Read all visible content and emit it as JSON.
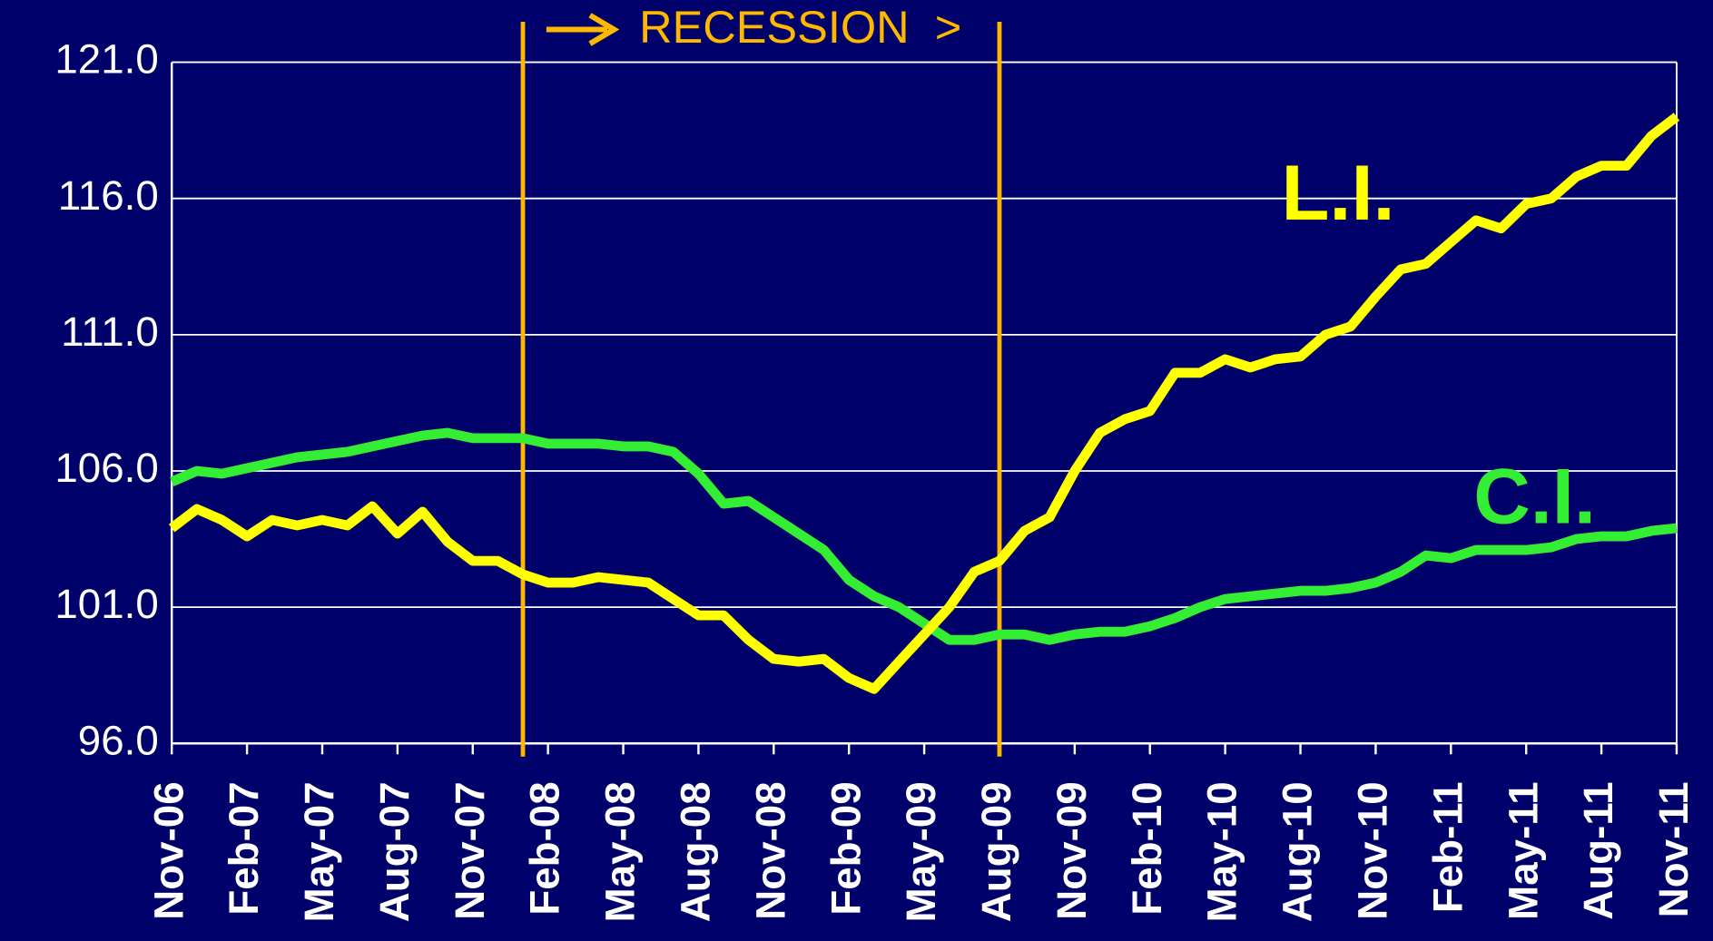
{
  "chart_data": {
    "type": "line",
    "annotation": "RECESSION  >",
    "recession_lines": [
      14,
      33
    ],
    "categories": [
      "Nov-06",
      null,
      null,
      "Feb-07",
      null,
      null,
      "May-07",
      null,
      null,
      "Aug-07",
      null,
      null,
      "Nov-07",
      null,
      null,
      "Feb-08",
      null,
      null,
      "May-08",
      null,
      null,
      "Aug-08",
      null,
      null,
      "Nov-08",
      null,
      null,
      "Feb-09",
      null,
      null,
      "May-09",
      null,
      null,
      "Aug-09",
      null,
      null,
      "Nov-09",
      null,
      null,
      "Feb-10",
      null,
      null,
      "May-10",
      null,
      null,
      "Aug-10",
      null,
      null,
      "Nov-10",
      null,
      null,
      "Feb-11",
      null,
      null,
      "May-11",
      null,
      null,
      "Aug-11",
      null,
      null,
      "Nov-11"
    ],
    "series": [
      {
        "name": "L.I.",
        "color": "#ffff00",
        "values": [
          103.9,
          104.6,
          104.2,
          103.6,
          104.2,
          104.0,
          104.2,
          104.0,
          104.7,
          103.7,
          104.5,
          103.4,
          102.7,
          102.7,
          102.2,
          101.9,
          101.9,
          102.1,
          102.0,
          101.9,
          101.3,
          100.7,
          100.7,
          99.8,
          99.1,
          99.0,
          99.1,
          98.4,
          98.0,
          99.0,
          100.0,
          101.0,
          102.3,
          102.7,
          103.8,
          104.3,
          106.0,
          107.4,
          107.9,
          108.2,
          109.6,
          109.6,
          110.1,
          109.8,
          110.1,
          110.2,
          111.0,
          111.3,
          112.4,
          113.4,
          113.6,
          114.4,
          115.2,
          114.9,
          115.8,
          116.0,
          116.8,
          117.2,
          117.2,
          118.3,
          119.0
        ]
      },
      {
        "name": "C.I.",
        "color": "#33ee33",
        "values": [
          105.6,
          106.0,
          105.9,
          106.1,
          106.3,
          106.5,
          106.6,
          106.7,
          106.9,
          107.1,
          107.3,
          107.4,
          107.2,
          107.2,
          107.2,
          107.0,
          107.0,
          107.0,
          106.9,
          106.9,
          106.7,
          105.9,
          104.8,
          104.9,
          104.3,
          103.7,
          103.1,
          102.0,
          101.4,
          101.0,
          100.4,
          99.8,
          99.8,
          100.0,
          100.0,
          99.8,
          100.0,
          100.1,
          100.1,
          100.3,
          100.6,
          101.0,
          101.3,
          101.4,
          101.5,
          101.6,
          101.6,
          101.7,
          101.9,
          102.3,
          102.9,
          102.8,
          103.1,
          103.1,
          103.1,
          103.2,
          103.5,
          103.6,
          103.6,
          103.8,
          103.9
        ]
      }
    ],
    "ylim": [
      96,
      121
    ],
    "yticks": [
      {
        "value": 96,
        "label": "96.0"
      },
      {
        "value": 101,
        "label": "101.0"
      },
      {
        "value": 106,
        "label": "106.0"
      },
      {
        "value": 111,
        "label": "111.0"
      },
      {
        "value": 116,
        "label": "116.0"
      },
      {
        "value": 121,
        "label": "121.0"
      }
    ],
    "grid": true
  }
}
